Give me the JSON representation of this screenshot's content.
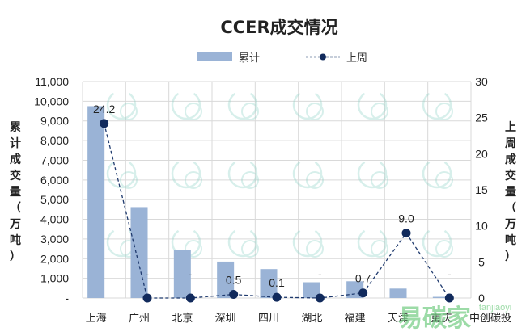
{
  "chart_data": {
    "type": "bar",
    "title": "CCER成交情况",
    "categories": [
      "上海",
      "广州",
      "北京",
      "深圳",
      "四川",
      "湖北",
      "福建",
      "天津",
      "重庆"
    ],
    "series": [
      {
        "name": "累计",
        "type": "bar",
        "axis": "left",
        "values": [
          9750,
          4620,
          2440,
          1850,
          1470,
          800,
          850,
          480,
          60
        ]
      },
      {
        "name": "上周",
        "type": "line",
        "axis": "right",
        "values": [
          24.2,
          0,
          0,
          0.5,
          0.1,
          0,
          0.7,
          9.0,
          0
        ],
        "labels": [
          "24.2",
          "-",
          "-",
          "0.5",
          "0.1",
          "-",
          "0.7",
          "9.0",
          "-"
        ]
      }
    ],
    "ylabel_left": "累计成交量（万吨）",
    "ylabel_right": "上周成交量（万吨）",
    "ylim_left": [
      0,
      11000
    ],
    "ylim_right": [
      0,
      30
    ],
    "yticks_left": [
      "-",
      "1,000",
      "2,000",
      "3,000",
      "4,000",
      "5,000",
      "6,000",
      "7,000",
      "8,000",
      "9,000",
      "10,000",
      "11,000"
    ],
    "yticks_right": [
      "0",
      "5",
      "10",
      "15",
      "20",
      "25",
      "30"
    ],
    "grid": true,
    "legend_position": "top-center"
  },
  "colors": {
    "bar": "#9ab3d6",
    "line": "#1f3a6e",
    "marker": "#112a5c"
  },
  "watermark": {
    "text": "易碳家",
    "sub": "tanjiaoyi",
    "right_label": "中创碳投"
  }
}
